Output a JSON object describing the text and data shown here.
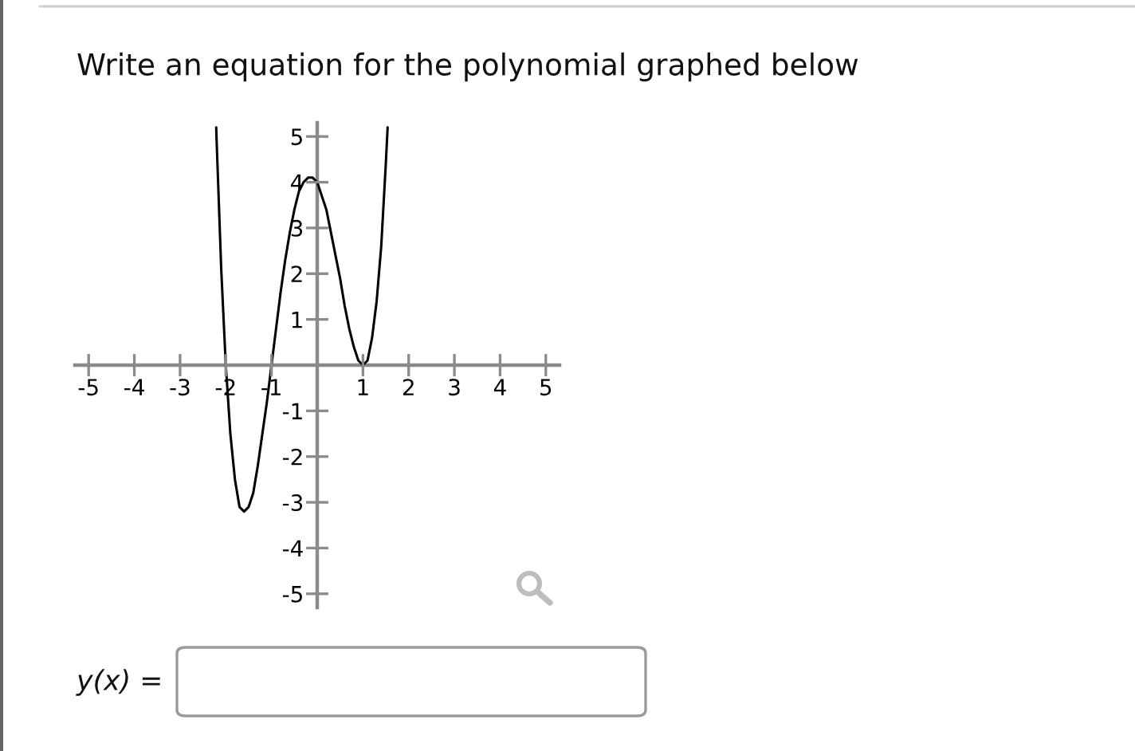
{
  "chart_data": {
    "type": "line",
    "title": "Write an equation for the polynomial graphed below",
    "annotations": [
      "y(x) ="
    ],
    "x": [
      -2.21,
      -2.2,
      -2.1,
      -2.0,
      -1.9,
      -1.8,
      -1.7,
      -1.6,
      -1.5,
      -1.4,
      -1.3,
      -1.2,
      -1.1,
      -1.0,
      -0.9,
      -0.8,
      -0.7,
      -0.6,
      -0.5,
      -0.4,
      -0.3,
      -0.2,
      -0.1,
      0,
      0.1,
      0.2,
      0.3,
      0.4,
      0.5,
      0.6,
      0.7,
      0.8,
      0.9,
      1.0,
      1.1,
      1.2,
      1.3,
      1.4,
      1.5,
      1.54
    ],
    "series": [
      {
        "color": "#000000",
        "values": [
          5.2,
          4.9,
          2.1,
          0,
          -1.5,
          -2.5,
          -3.1,
          -3.2,
          -3.1,
          -2.8,
          -2.2,
          -1.5,
          -0.8,
          0,
          0.8,
          1.6,
          2.3,
          2.9,
          3.4,
          3.8,
          4.0,
          4.1,
          4.1,
          4.0,
          3.7,
          3.4,
          2.9,
          2.4,
          1.9,
          1.3,
          0.8,
          0.4,
          0.1,
          0,
          0.1,
          0.6,
          1.4,
          2.6,
          4.4,
          5.2
        ]
      }
    ],
    "xlim": [
      -5.3,
      5.3
    ],
    "ylim": [
      -5.3,
      5.3
    ],
    "xticks": [
      -5,
      -4,
      -3,
      -2,
      -1,
      1,
      2,
      3,
      4,
      5
    ],
    "yticks": [
      -5,
      -4,
      -3,
      -2,
      -1,
      1,
      2,
      3,
      4,
      5
    ]
  }
}
